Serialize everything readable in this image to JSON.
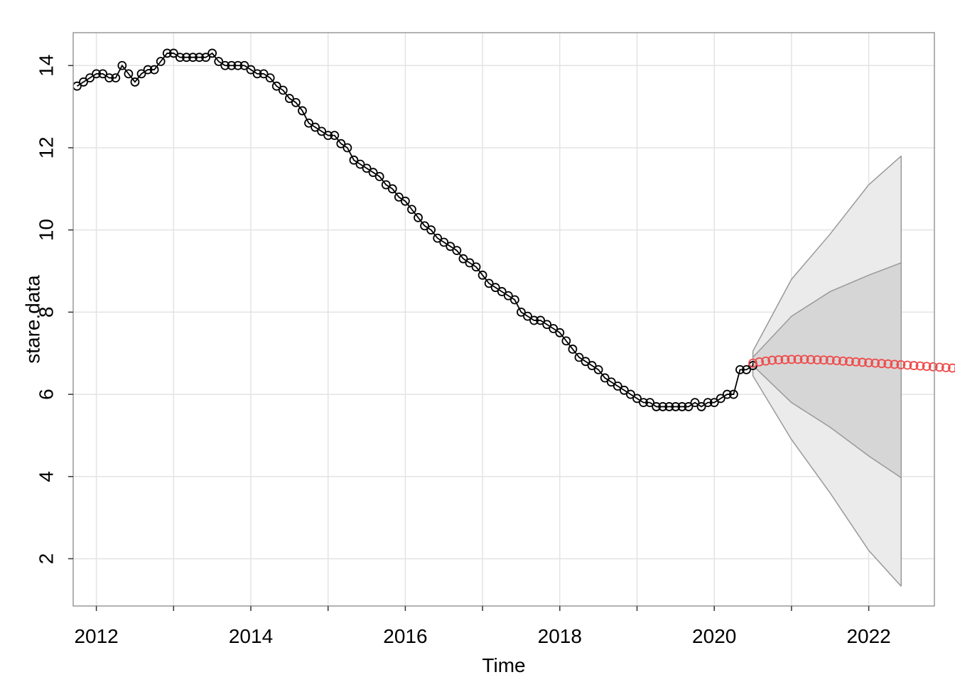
{
  "chart_data": {
    "type": "line",
    "title": "",
    "xlabel": "Time",
    "ylabel": "stare.data",
    "xlim": [
      2011.7,
      2022.85
    ],
    "ylim": [
      0.85,
      14.8
    ],
    "x_major_ticks": [
      2012,
      2014,
      2016,
      2018,
      2020,
      2022
    ],
    "x_major_labels": [
      "2012",
      "2014",
      "2016",
      "2018",
      "2020",
      "2022"
    ],
    "x_minor_ticks": [
      2013,
      2015,
      2017,
      2019,
      2021
    ],
    "y_ticks": [
      2,
      4,
      6,
      8,
      10,
      12,
      14
    ],
    "y_tick_labels": [
      "2",
      "4",
      "6",
      "8",
      "10",
      "12",
      "14"
    ],
    "grid": true,
    "observed": {
      "start": 2011.75,
      "step": 0.08333333,
      "color": "#000000",
      "values": [
        13.5,
        13.6,
        13.7,
        13.8,
        13.8,
        13.7,
        13.7,
        14.0,
        13.8,
        13.6,
        13.8,
        13.9,
        13.9,
        14.1,
        14.3,
        14.3,
        14.2,
        14.2,
        14.2,
        14.2,
        14.2,
        14.3,
        14.1,
        14.0,
        14.0,
        14.0,
        14.0,
        13.9,
        13.8,
        13.8,
        13.7,
        13.5,
        13.4,
        13.2,
        13.1,
        12.9,
        12.6,
        12.5,
        12.4,
        12.3,
        12.3,
        12.1,
        12.0,
        11.7,
        11.6,
        11.5,
        11.4,
        11.3,
        11.1,
        11.0,
        10.8,
        10.7,
        10.5,
        10.3,
        10.1,
        10.0,
        9.8,
        9.7,
        9.6,
        9.5,
        9.3,
        9.2,
        9.1,
        8.9,
        8.7,
        8.6,
        8.5,
        8.4,
        8.3,
        8.0,
        7.9,
        7.8,
        7.8,
        7.7,
        7.6,
        7.5,
        7.3,
        7.1,
        6.9,
        6.8,
        6.7,
        6.6,
        6.4,
        6.3,
        6.2,
        6.1,
        6.0,
        5.9,
        5.8,
        5.8,
        5.7,
        5.7,
        5.7,
        5.7,
        5.7,
        5.7,
        5.8,
        5.7,
        5.8,
        5.8,
        5.9,
        6.0,
        6.0,
        6.6,
        6.6,
        6.7
      ]
    },
    "forecast": {
      "start": 2020.5,
      "step": 0.08333333,
      "color": "#f04a4a",
      "mean": [
        6.76,
        6.79,
        6.81,
        6.83,
        6.84,
        6.845,
        6.85,
        6.85,
        6.85,
        6.845,
        6.84,
        6.835,
        6.83,
        6.82,
        6.81,
        6.8,
        6.79,
        6.78,
        6.77,
        6.76,
        6.75,
        6.74,
        6.73,
        6.72,
        6.71,
        6.7,
        6.69,
        6.68,
        6.67,
        6.66,
        6.65,
        6.64,
        6.63,
        6.62,
        6.61,
        6.6,
        6.59,
        6.58,
        6.57,
        6.56
      ],
      "lower80_points": [
        [
          2020.5,
          6.7
        ],
        [
          2021.0,
          5.8
        ],
        [
          2021.5,
          5.2
        ],
        [
          2022.0,
          4.5
        ],
        [
          2022.42,
          3.97
        ]
      ],
      "upper80_points": [
        [
          2020.5,
          6.9
        ],
        [
          2021.0,
          7.9
        ],
        [
          2021.5,
          8.5
        ],
        [
          2022.0,
          8.9
        ],
        [
          2022.42,
          9.2
        ]
      ],
      "lower95_points": [
        [
          2020.5,
          6.45
        ],
        [
          2021.0,
          4.9
        ],
        [
          2021.5,
          3.6
        ],
        [
          2022.0,
          2.2
        ],
        [
          2022.42,
          1.33
        ]
      ],
      "upper95_points": [
        [
          2020.5,
          7.05
        ],
        [
          2021.0,
          8.8
        ],
        [
          2021.5,
          9.9
        ],
        [
          2022.0,
          11.1
        ],
        [
          2022.42,
          11.8
        ]
      ],
      "band80_color": "#d6d6d6",
      "band95_color": "#ebebeb",
      "band_edge_color": "#999999"
    }
  }
}
